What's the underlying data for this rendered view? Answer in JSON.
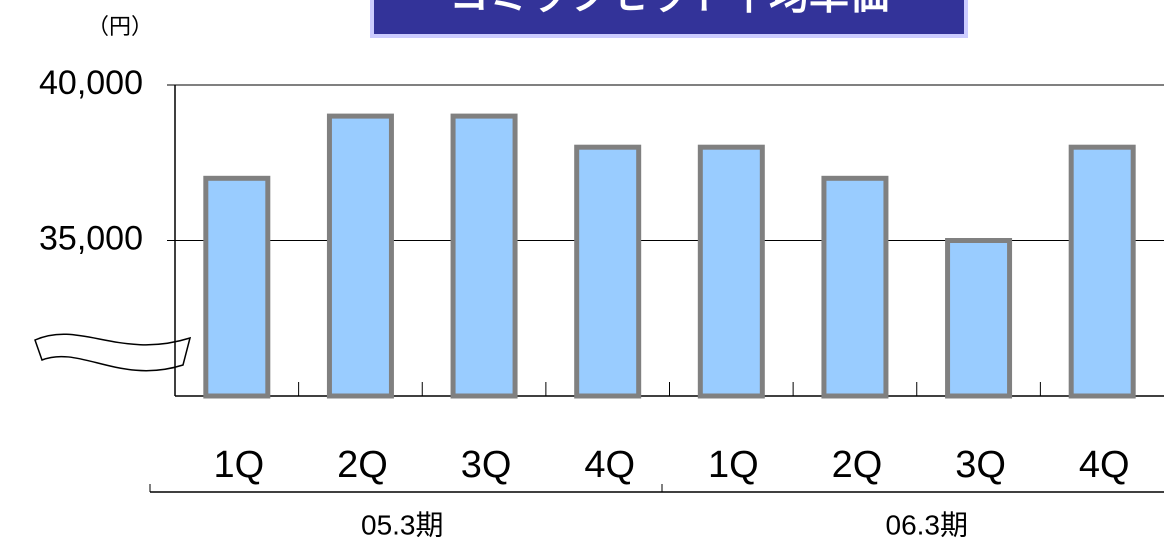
{
  "chart_data": {
    "type": "bar",
    "title": "コミックセット平均単価",
    "y_unit": "（円）",
    "categories": [
      "1Q",
      "2Q",
      "3Q",
      "4Q",
      "1Q",
      "2Q",
      "3Q",
      "4Q"
    ],
    "groups": [
      "05.3期",
      "06.3期"
    ],
    "values": [
      37000,
      39000,
      39000,
      38000,
      38000,
      37000,
      35000,
      38000
    ],
    "color": "#99ccff",
    "edge_color": "#808080",
    "ylim": [
      30000,
      40000
    ],
    "yticks": [
      {
        "value": 35000,
        "label": "35,000"
      },
      {
        "value": 40000,
        "label": "40,000"
      }
    ],
    "grid": true
  }
}
